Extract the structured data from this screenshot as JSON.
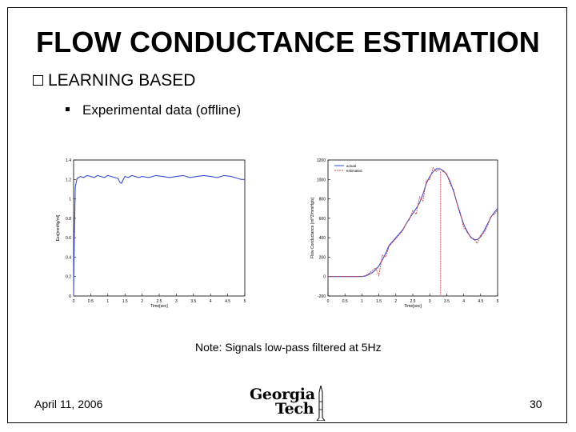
{
  "slide": {
    "title": "FLOW CONDUCTANCE ESTIMATION",
    "bullet1": "LEARNING BASED",
    "bullet2": "Experimental data (offline)",
    "note": "Note: Signals low-pass filtered at 5Hz",
    "date": "April 11, 2006",
    "page": "30",
    "logo_line1": "Georgia",
    "logo_line2": "Tech"
  },
  "chart_data": [
    {
      "type": "line",
      "xlabel": "Time[sec]",
      "ylabel": "Ees[mmHg/ml]",
      "xlim": [
        0,
        5
      ],
      "ylim": [
        0,
        1.4
      ],
      "xticks": [
        "0",
        "0.5",
        "1",
        "1.5",
        "2",
        "2.5",
        "3",
        "3.5",
        "4",
        "4.5",
        "5"
      ],
      "yticks": [
        "0",
        "0.2",
        "0.4",
        "0.6",
        "0.8",
        "1",
        "1.2",
        "1.4"
      ],
      "series": [
        {
          "color": "#3a4fd0",
          "x": [
            0,
            0.02,
            0.05,
            0.1,
            0.2,
            0.3,
            0.4,
            0.5,
            0.6,
            0.7,
            0.8,
            0.9,
            1.0,
            1.1,
            1.2,
            1.3,
            1.35,
            1.4,
            1.45,
            1.5,
            1.6,
            1.7,
            1.8,
            1.9,
            2.0,
            2.2,
            2.4,
            2.6,
            2.8,
            3.0,
            3.2,
            3.4,
            3.6,
            3.8,
            4.0,
            4.2,
            4.4,
            4.6,
            4.8,
            4.9,
            5.0
          ],
          "y": [
            0.0,
            0.6,
            1.12,
            1.21,
            1.23,
            1.22,
            1.24,
            1.23,
            1.22,
            1.24,
            1.23,
            1.22,
            1.24,
            1.23,
            1.22,
            1.21,
            1.17,
            1.16,
            1.2,
            1.23,
            1.22,
            1.24,
            1.23,
            1.22,
            1.23,
            1.22,
            1.24,
            1.23,
            1.22,
            1.23,
            1.24,
            1.22,
            1.23,
            1.24,
            1.23,
            1.22,
            1.24,
            1.23,
            1.21,
            1.2,
            1.2
          ]
        }
      ]
    },
    {
      "type": "line",
      "xlabel": "Time[sec]",
      "ylabel": "Flow Conductance [ml^2/mmHg/s]",
      "xlim": [
        0,
        5
      ],
      "ylim": [
        -200,
        1200
      ],
      "xticks": [
        "0",
        "0.5",
        "1",
        "1.5",
        "2",
        "2.5",
        "3",
        "3.5",
        "4",
        "4.5",
        "5"
      ],
      "yticks": [
        "-200",
        "0",
        "200",
        "400",
        "600",
        "800",
        "1000",
        "1200"
      ],
      "legend": [
        "actual",
        "estimated"
      ],
      "legend_position": "top-left",
      "series": [
        {
          "name": "actual",
          "color": "#3a4fd0",
          "style": "solid",
          "x": [
            0,
            0.5,
            1.0,
            1.1,
            1.2,
            1.3,
            1.4,
            1.5,
            1.6,
            1.7,
            1.8,
            1.9,
            2.0,
            2.1,
            2.2,
            2.3,
            2.4,
            2.5,
            2.6,
            2.7,
            2.8,
            2.9,
            3.0,
            3.1,
            3.2,
            3.3,
            3.4,
            3.5,
            3.6,
            3.7,
            3.8,
            3.9,
            4.0,
            4.1,
            4.2,
            4.3,
            4.4,
            4.5,
            4.6,
            4.7,
            4.8,
            4.9,
            5.0
          ],
          "y": [
            0,
            0,
            0,
            5,
            20,
            40,
            70,
            110,
            170,
            240,
            320,
            360,
            400,
            440,
            480,
            540,
            600,
            650,
            700,
            760,
            850,
            960,
            1030,
            1080,
            1110,
            1110,
            1090,
            1050,
            980,
            880,
            760,
            640,
            540,
            460,
            410,
            380,
            380,
            410,
            470,
            540,
            610,
            660,
            700
          ]
        },
        {
          "name": "estimated",
          "color": "#d94040",
          "style": "dashed",
          "x": [
            0,
            0.5,
            1.0,
            1.1,
            1.2,
            1.3,
            1.4,
            1.5,
            1.6,
            1.7,
            1.8,
            1.9,
            2.0,
            2.1,
            2.2,
            2.3,
            2.4,
            2.5,
            2.6,
            2.7,
            2.8,
            2.9,
            3.0,
            3.1,
            3.2,
            3.3,
            3.4,
            3.5,
            3.6,
            3.7,
            3.8,
            3.9,
            4.0,
            4.1,
            4.2,
            4.3,
            4.4,
            4.5,
            4.6,
            4.7,
            4.8,
            4.9,
            5.0
          ],
          "y": [
            0,
            0,
            0,
            10,
            30,
            60,
            90,
            10,
            220,
            200,
            310,
            350,
            390,
            430,
            470,
            540,
            590,
            680,
            640,
            820,
            780,
            990,
            1000,
            1120,
            1080,
            1110,
            1080,
            1060,
            950,
            900,
            760,
            660,
            500,
            480,
            400,
            390,
            340,
            430,
            450,
            520,
            620,
            640,
            680
          ]
        }
      ]
    }
  ]
}
